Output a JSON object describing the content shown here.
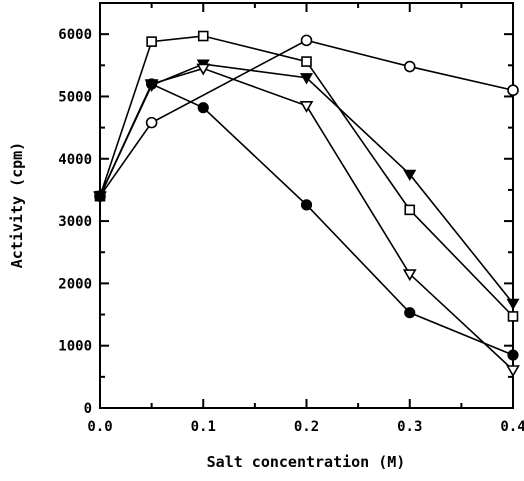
{
  "chart_data": {
    "type": "line",
    "title": "",
    "xlabel": "Salt concentration (M)",
    "ylabel": "Activity (cpm)",
    "xlim": [
      0.0,
      0.4
    ],
    "ylim": [
      0,
      6500
    ],
    "x_ticks": [
      "0.0",
      "0.1",
      "0.2",
      "0.3",
      "0.4"
    ],
    "y_ticks": [
      "0",
      "1000",
      "2000",
      "3000",
      "4000",
      "5000",
      "6000"
    ],
    "grid": false,
    "legend": "none",
    "series": [
      {
        "marker": "open-circle",
        "x": [
          0.0,
          0.05,
          0.2,
          0.3,
          0.4
        ],
        "y": [
          3400,
          4580,
          5900,
          5480,
          5100
        ]
      },
      {
        "marker": "open-square",
        "x": [
          0.0,
          0.05,
          0.1,
          0.2,
          0.3,
          0.4
        ],
        "y": [
          3400,
          5880,
          5970,
          5560,
          3180,
          1470
        ]
      },
      {
        "marker": "filled-down-triangle",
        "x": [
          0.0,
          0.05,
          0.1,
          0.2,
          0.3,
          0.4
        ],
        "y": [
          3400,
          5180,
          5520,
          5300,
          3750,
          1680
        ]
      },
      {
        "marker": "open-down-triangle",
        "x": [
          0.0,
          0.05,
          0.1,
          0.2,
          0.3,
          0.4
        ],
        "y": [
          3400,
          5200,
          5450,
          4850,
          2150,
          610
        ]
      },
      {
        "marker": "filled-circle",
        "x": [
          0.0,
          0.05,
          0.1,
          0.2,
          0.3,
          0.4
        ],
        "y": [
          3400,
          5200,
          4820,
          3260,
          1530,
          850
        ]
      }
    ]
  }
}
